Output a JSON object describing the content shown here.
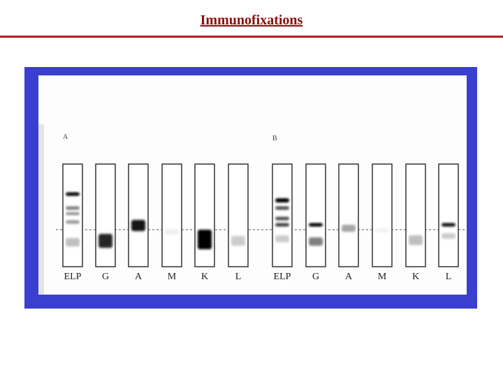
{
  "header": {
    "title": "Immunofixations"
  },
  "figure": {
    "panels": [
      {
        "label": "A",
        "lanes": [
          "ELP",
          "G",
          "A",
          "M",
          "K",
          "L"
        ]
      },
      {
        "label": "B",
        "lanes": [
          "ELP",
          "G",
          "A",
          "M",
          "K",
          "L"
        ]
      }
    ]
  }
}
